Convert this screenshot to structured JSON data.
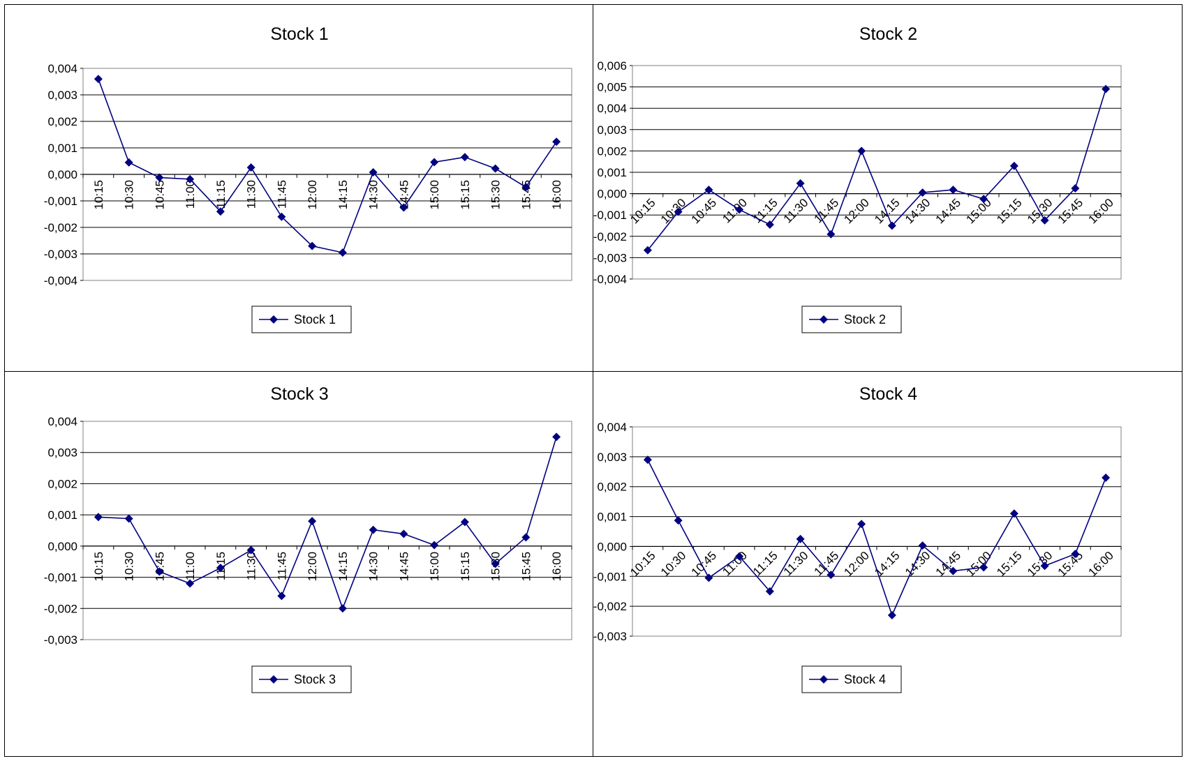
{
  "colors": {
    "series": "#000080",
    "grid": "#000000",
    "frame": "#808080",
    "border": "#000000"
  },
  "chart_data": [
    {
      "type": "line",
      "title": "Stock 1",
      "categories": [
        "10:15",
        "10:30",
        "10:45",
        "11:00",
        "11:15",
        "11:30",
        "11:45",
        "12:00",
        "14:15",
        "14:30",
        "14:45",
        "15:00",
        "15:15",
        "15:30",
        "15:45",
        "16:00"
      ],
      "series": [
        {
          "name": "Stock 1",
          "values": [
            0.0036,
            0.00045,
            -0.00012,
            -0.00018,
            -0.0014,
            0.00026,
            -0.0016,
            -0.0027,
            -0.00295,
            8e-05,
            -0.00125,
            0.00046,
            0.00065,
            0.00022,
            -0.00048,
            0.00123
          ]
        }
      ],
      "ylim": [
        -0.004,
        0.004
      ],
      "yticks": [
        "0,004",
        "0,003",
        "0,002",
        "0,001",
        "0,000",
        "-0,001",
        "-0,002",
        "-0,003",
        "-0,004"
      ],
      "grid": true,
      "legend": "bottom-center"
    },
    {
      "type": "line",
      "title": "Stock 2",
      "categories": [
        "10:15",
        "10:30",
        "10:45",
        "11:00",
        "11:15",
        "11:30",
        "11:45",
        "12:00",
        "14:15",
        "14:30",
        "14:45",
        "15:00",
        "15:15",
        "15:30",
        "15:45",
        "16:00"
      ],
      "series": [
        {
          "name": "Stock 2",
          "values": [
            -0.00265,
            -0.00085,
            0.00018,
            -0.00075,
            -0.00145,
            0.00048,
            -0.0019,
            0.002,
            -0.0015,
            5e-05,
            0.00018,
            -0.00025,
            0.0013,
            -0.00125,
            0.00025,
            0.0049
          ]
        }
      ],
      "ylim": [
        -0.004,
        0.006
      ],
      "yticks": [
        "0,006",
        "0,005",
        "0,004",
        "0,003",
        "0,002",
        "0,001",
        "0,000",
        "-0,001",
        "-0,002",
        "-0,003",
        "-0,004"
      ],
      "grid": true,
      "legend": "bottom-center"
    },
    {
      "type": "line",
      "title": "Stock 3",
      "categories": [
        "10:15",
        "10:30",
        "10:45",
        "11:00",
        "11:15",
        "11:30",
        "11:45",
        "12:00",
        "14:15",
        "14:30",
        "14:45",
        "15:00",
        "15:15",
        "15:30",
        "15:45",
        "16:00"
      ],
      "series": [
        {
          "name": "Stock 3",
          "values": [
            0.00093,
            0.00088,
            -0.00082,
            -0.0012,
            -0.0007,
            -0.00013,
            -0.0016,
            0.0008,
            -0.002,
            0.00052,
            0.00039,
            3e-05,
            0.00077,
            -0.00057,
            0.00028,
            0.0035
          ]
        }
      ],
      "ylim": [
        -0.003,
        0.004
      ],
      "yticks": [
        "0,004",
        "0,003",
        "0,002",
        "0,001",
        "0,000",
        "-0,001",
        "-0,002",
        "-0,003"
      ],
      "grid": true,
      "legend": "bottom-center"
    },
    {
      "type": "line",
      "title": "Stock 4",
      "categories": [
        "10:15",
        "10:30",
        "10:45",
        "11:00",
        "11:15",
        "11:30",
        "11:45",
        "12:00",
        "14:15",
        "14:30",
        "14:45",
        "15:00",
        "15:15",
        "15:30",
        "15:45",
        "16:00"
      ],
      "series": [
        {
          "name": "Stock 4",
          "values": [
            0.0029,
            0.00087,
            -0.00105,
            -0.00033,
            -0.0015,
            0.00025,
            -0.00095,
            0.00075,
            -0.0023,
            3e-05,
            -0.00082,
            -0.0007,
            0.0011,
            -0.00065,
            -0.00025,
            0.0023
          ]
        }
      ],
      "ylim": [
        -0.003,
        0.004
      ],
      "yticks": [
        "0,004",
        "0,003",
        "0,002",
        "0,001",
        "0,000",
        "-0,001",
        "-0,002",
        "-0,003"
      ],
      "grid": true,
      "legend": "bottom-center"
    }
  ]
}
